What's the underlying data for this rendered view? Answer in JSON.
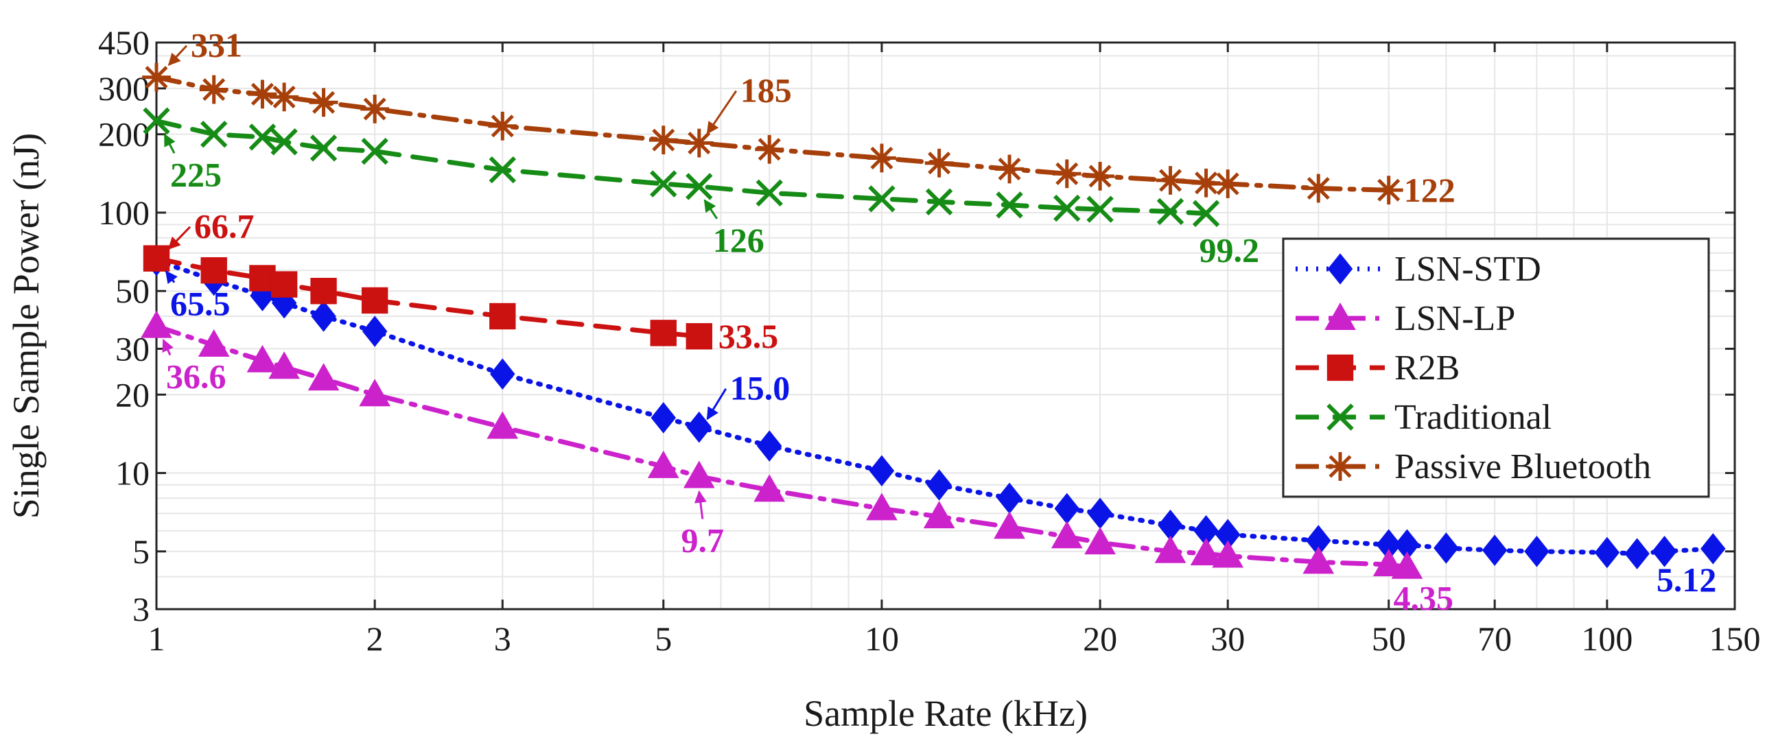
{
  "chart_data": {
    "type": "line",
    "xlabel": "Sample Rate (kHz)",
    "ylabel": "Single Sample Power (nJ)",
    "xscale": "log",
    "yscale": "log",
    "xlim": [
      1,
      150
    ],
    "ylim": [
      3,
      450
    ],
    "grid": true,
    "legend_position": "right",
    "x_ticks": [
      1,
      2,
      3,
      5,
      10,
      20,
      30,
      50,
      70,
      100,
      150
    ],
    "y_ticks": [
      3,
      5,
      10,
      20,
      30,
      50,
      100,
      200,
      300,
      450
    ],
    "series": [
      {
        "name": "LSN-STD",
        "color": "#0a14e6",
        "line_style": "dotted",
        "marker": "diamond",
        "x": [
          1,
          1.2,
          1.4,
          1.5,
          1.7,
          2,
          3,
          5,
          5.6,
          7,
          10,
          12,
          15,
          18,
          20,
          25,
          28,
          30,
          40,
          50,
          53,
          60,
          70,
          80,
          100,
          110,
          120,
          140
        ],
        "y": [
          65.5,
          55,
          48,
          45,
          40,
          35,
          24,
          16.3,
          15.0,
          12.7,
          10.2,
          9.0,
          8.0,
          7.3,
          7.0,
          6.3,
          6.0,
          5.8,
          5.5,
          5.3,
          5.3,
          5.15,
          5.05,
          5.0,
          4.95,
          4.9,
          5.0,
          5.12
        ]
      },
      {
        "name": "LSN-LP",
        "color": "#cc22cc",
        "line_style": "dashdot",
        "marker": "triangle",
        "x": [
          1,
          1.2,
          1.4,
          1.5,
          1.7,
          2,
          3,
          5,
          5.6,
          7,
          10,
          12,
          15,
          18,
          20,
          25,
          28,
          30,
          40,
          50,
          53
        ],
        "y": [
          36.6,
          31,
          27,
          25.5,
          23,
          20,
          15,
          10.6,
          9.7,
          8.6,
          7.3,
          6.8,
          6.2,
          5.7,
          5.4,
          5.0,
          4.9,
          4.8,
          4.55,
          4.45,
          4.35
        ]
      },
      {
        "name": "R2B",
        "color": "#cc1111",
        "line_style": "dashed",
        "marker": "square",
        "x": [
          1,
          1.2,
          1.4,
          1.5,
          1.7,
          2,
          3,
          5,
          5.6
        ],
        "y": [
          66.7,
          60,
          56,
          53,
          50,
          46,
          40,
          34.5,
          33.5
        ]
      },
      {
        "name": "Traditional",
        "color": "#168c16",
        "line_style": "dashed",
        "marker": "x",
        "x": [
          1,
          1.2,
          1.4,
          1.5,
          1.7,
          2,
          3,
          5,
          5.6,
          7,
          10,
          12,
          15,
          18,
          20,
          25,
          28
        ],
        "y": [
          225,
          200,
          195,
          187,
          177,
          172,
          146,
          129,
          126,
          119,
          113,
          110,
          107,
          104,
          103,
          101,
          99.2
        ]
      },
      {
        "name": "Passive Bluetooth",
        "color": "#a63f0a",
        "line_style": "dashdot",
        "marker": "asterisk",
        "x": [
          1,
          1.2,
          1.4,
          1.5,
          1.7,
          2,
          3,
          5,
          5.6,
          7,
          10,
          12,
          15,
          18,
          20,
          25,
          28,
          30,
          40,
          50
        ],
        "y": [
          331,
          297,
          285,
          278,
          265,
          250,
          215,
          190,
          185,
          175,
          162,
          155,
          147,
          141,
          138,
          133,
          130,
          129,
          124,
          122
        ]
      }
    ],
    "annotations": [
      {
        "text": "331",
        "series": "Passive Bluetooth",
        "x": 1,
        "y": 331
      },
      {
        "text": "185",
        "series": "Passive Bluetooth",
        "x": 5.6,
        "y": 185
      },
      {
        "text": "122",
        "series": "Passive Bluetooth",
        "x": 50,
        "y": 122
      },
      {
        "text": "225",
        "series": "Traditional",
        "x": 1,
        "y": 225
      },
      {
        "text": "126",
        "series": "Traditional",
        "x": 5.6,
        "y": 126
      },
      {
        "text": "99.2",
        "series": "Traditional",
        "x": 28,
        "y": 99.2
      },
      {
        "text": "66.7",
        "series": "R2B",
        "x": 1,
        "y": 66.7
      },
      {
        "text": "33.5",
        "series": "R2B",
        "x": 5.6,
        "y": 33.5
      },
      {
        "text": "65.5",
        "series": "LSN-STD",
        "x": 1,
        "y": 65.5
      },
      {
        "text": "15.0",
        "series": "LSN-STD",
        "x": 5.6,
        "y": 15.0
      },
      {
        "text": "5.12",
        "series": "LSN-STD",
        "x": 140,
        "y": 5.12
      },
      {
        "text": "36.6",
        "series": "LSN-LP",
        "x": 1,
        "y": 36.6
      },
      {
        "text": "9.7",
        "series": "LSN-LP",
        "x": 5.6,
        "y": 9.7
      },
      {
        "text": "4.35",
        "series": "LSN-LP",
        "x": 53,
        "y": 4.35
      }
    ]
  }
}
